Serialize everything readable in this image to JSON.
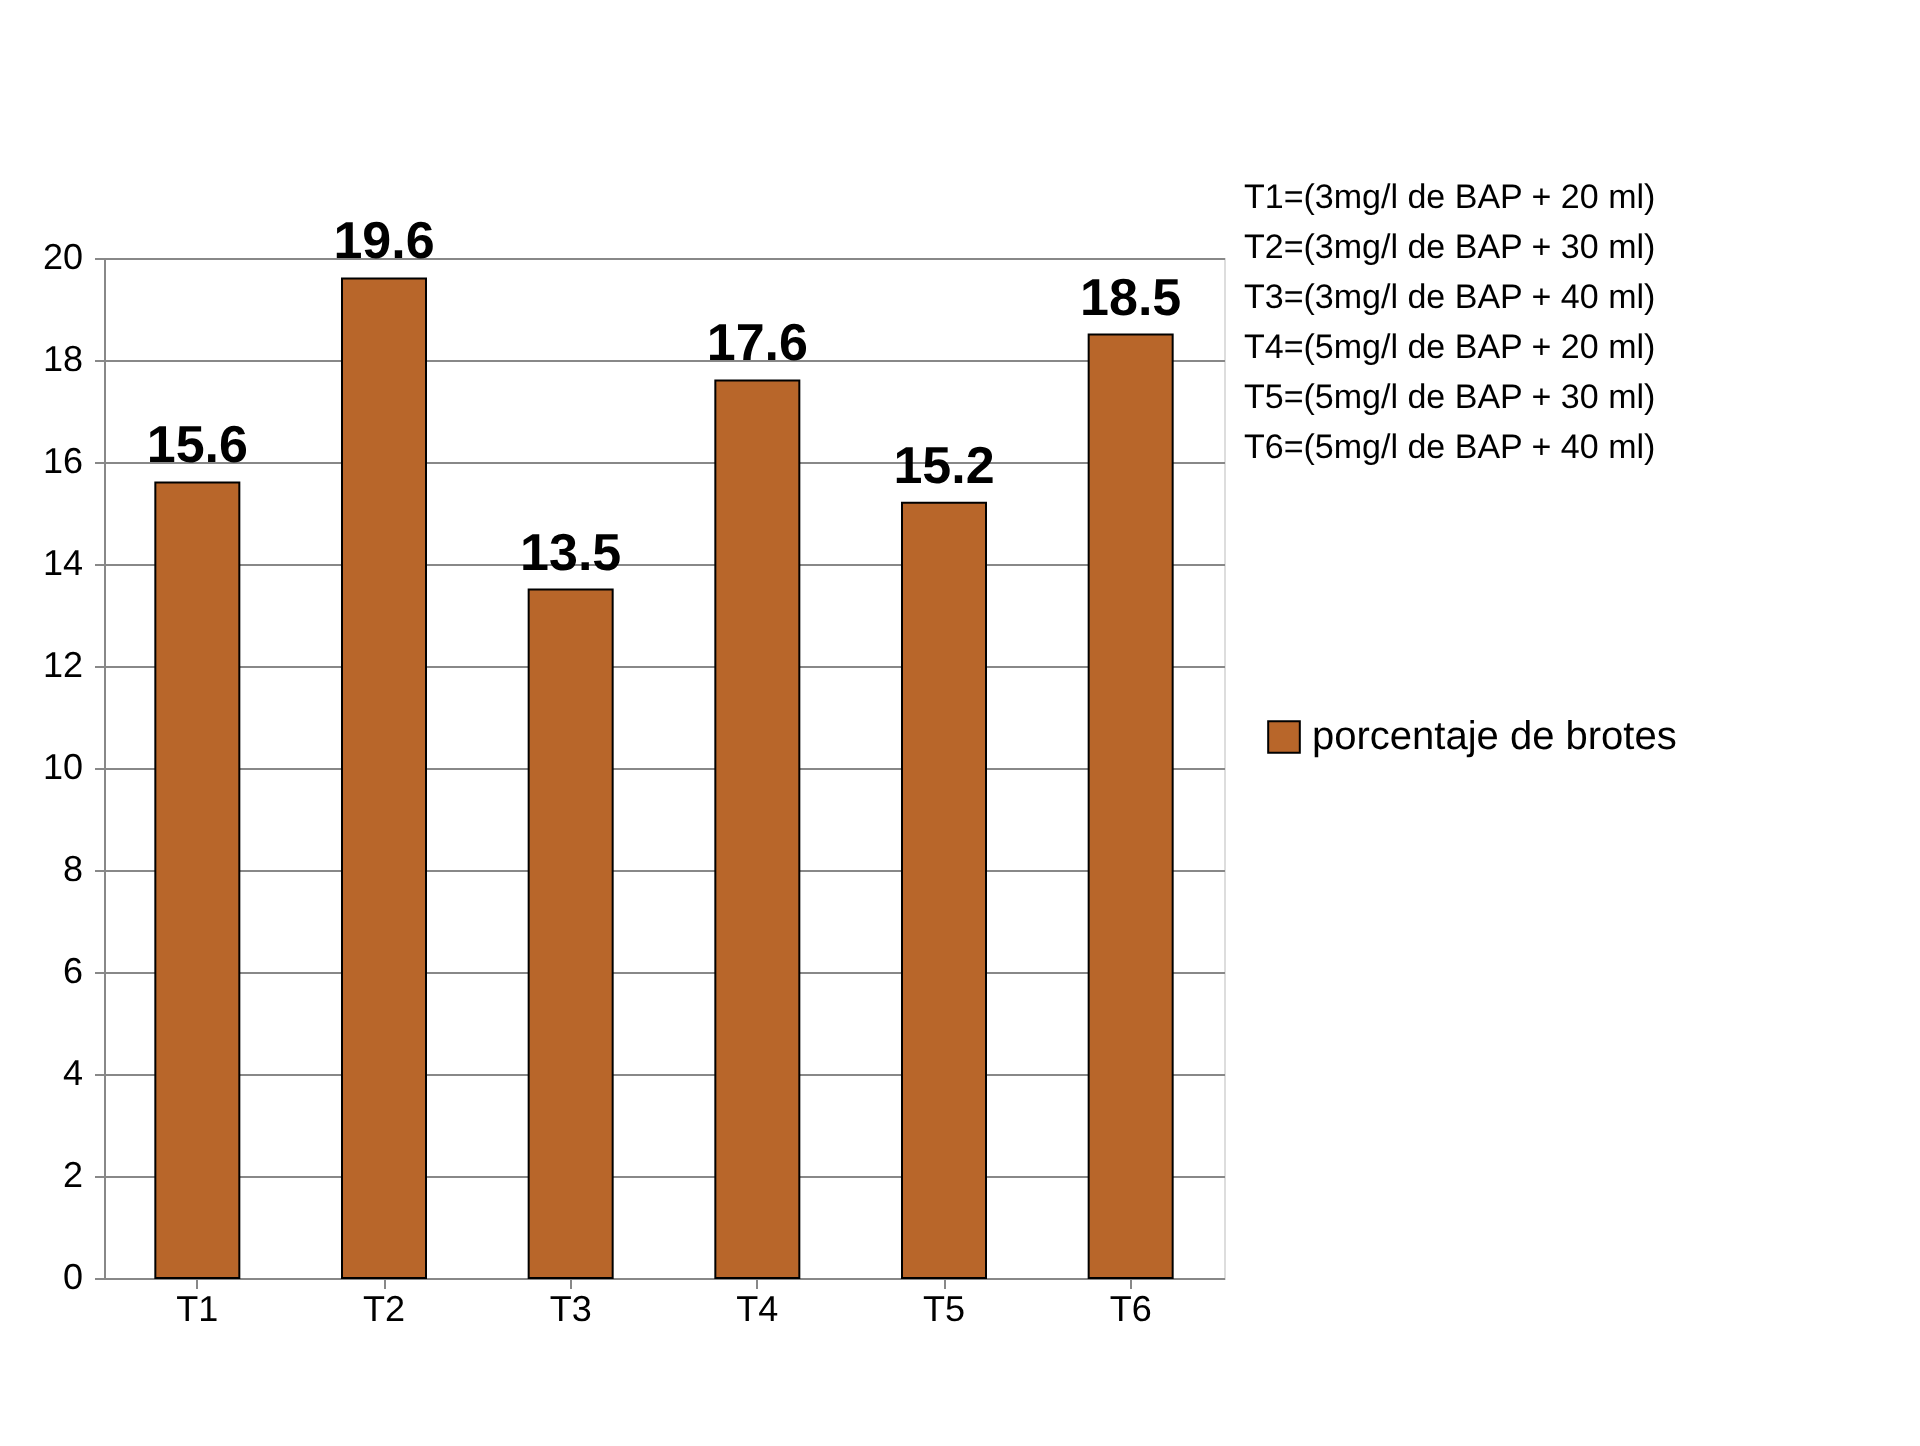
{
  "chart_data": {
    "type": "bar",
    "categories": [
      "T1",
      "T2",
      "T3",
      "T4",
      "T5",
      "T6"
    ],
    "series": [
      {
        "name": "porcentaje de brotes",
        "color": "#b8662a",
        "values": [
          15.6,
          19.6,
          13.5,
          17.6,
          15.2,
          18.5
        ]
      }
    ],
    "ylim": [
      0,
      20
    ],
    "yticks": [
      0,
      2,
      4,
      6,
      8,
      10,
      12,
      14,
      16,
      18,
      20
    ],
    "grid": "y",
    "legend": "right",
    "data_labels": true,
    "annotations": [
      "T1=(3mg/l de BAP + 20 ml)",
      "T2=(3mg/l de BAP + 30 ml)",
      "T3=(3mg/l de BAP + 40 ml)",
      "T4=(5mg/l de BAP + 20 ml)",
      "T5=(5mg/l de BAP + 30 ml)",
      "T6=(5mg/l de BAP + 40 ml)"
    ]
  }
}
